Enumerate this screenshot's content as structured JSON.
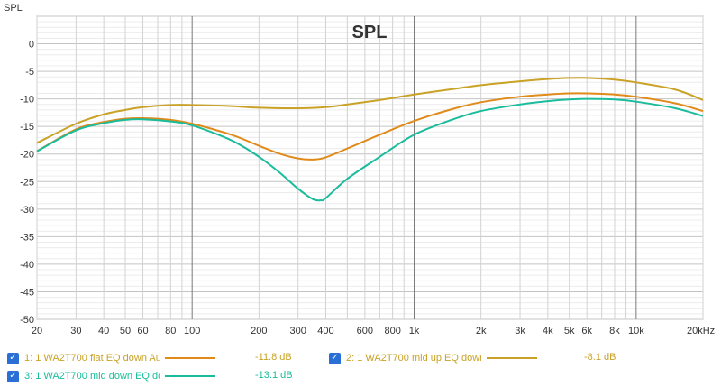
{
  "chart_data": {
    "type": "line",
    "title": "SPL",
    "ylabel": "SPL",
    "xlabel": "",
    "xscale": "log",
    "xlim": [
      20,
      20000
    ],
    "ylim": [
      -50,
      5
    ],
    "grid": true,
    "x_ticks": [
      {
        "v": 20,
        "label": "20"
      },
      {
        "v": 30,
        "label": "30"
      },
      {
        "v": 40,
        "label": "40"
      },
      {
        "v": 50,
        "label": "50"
      },
      {
        "v": 60,
        "label": "60"
      },
      {
        "v": 80,
        "label": "80"
      },
      {
        "v": 100,
        "label": "100"
      },
      {
        "v": 200,
        "label": "200"
      },
      {
        "v": 300,
        "label": "300"
      },
      {
        "v": 400,
        "label": "400"
      },
      {
        "v": 600,
        "label": "600"
      },
      {
        "v": 800,
        "label": "800"
      },
      {
        "v": 1000,
        "label": "1k"
      },
      {
        "v": 2000,
        "label": "2k"
      },
      {
        "v": 3000,
        "label": "3k"
      },
      {
        "v": 4000,
        "label": "4k"
      },
      {
        "v": 5000,
        "label": "5k"
      },
      {
        "v": 6000,
        "label": "6k"
      },
      {
        "v": 8000,
        "label": "8k"
      },
      {
        "v": 10000,
        "label": "10k"
      },
      {
        "v": 20000,
        "label": "20kHz"
      }
    ],
    "y_ticks": [
      {
        "v": 0,
        "label": "0"
      },
      {
        "v": -5,
        "label": "-5"
      },
      {
        "v": -10,
        "label": "-10"
      },
      {
        "v": -15,
        "label": "-15"
      },
      {
        "v": -20,
        "label": "-20"
      },
      {
        "v": -25,
        "label": "-25"
      },
      {
        "v": -30,
        "label": "-30"
      },
      {
        "v": -35,
        "label": "-35"
      },
      {
        "v": -40,
        "label": "-40"
      },
      {
        "v": -45,
        "label": "-45"
      },
      {
        "v": -50,
        "label": "-50"
      }
    ],
    "series": [
      {
        "name": "1: 1 WA2T700 flat EQ down Au",
        "value_label": "-11.8 dB",
        "color": "#e08a1a",
        "points": [
          [
            20,
            -19.5
          ],
          [
            30,
            -15.5
          ],
          [
            40,
            -14.2
          ],
          [
            50,
            -13.6
          ],
          [
            60,
            -13.5
          ],
          [
            80,
            -13.8
          ],
          [
            100,
            -14.5
          ],
          [
            150,
            -16.5
          ],
          [
            200,
            -18.5
          ],
          [
            250,
            -20.0
          ],
          [
            300,
            -20.8
          ],
          [
            350,
            -21.0
          ],
          [
            400,
            -20.6
          ],
          [
            500,
            -19.0
          ],
          [
            700,
            -16.5
          ],
          [
            1000,
            -14.0
          ],
          [
            1500,
            -11.8
          ],
          [
            2000,
            -10.6
          ],
          [
            3000,
            -9.6
          ],
          [
            4000,
            -9.2
          ],
          [
            5000,
            -9.0
          ],
          [
            6000,
            -9.0
          ],
          [
            8000,
            -9.2
          ],
          [
            10000,
            -9.6
          ],
          [
            15000,
            -10.8
          ],
          [
            20000,
            -12.2
          ]
        ]
      },
      {
        "name": "2: 1 WA2T700 mid up EQ dowr",
        "value_label": "-8.1 dB",
        "color": "#c9a227",
        "points": [
          [
            20,
            -18.0
          ],
          [
            30,
            -14.5
          ],
          [
            40,
            -12.8
          ],
          [
            50,
            -12.0
          ],
          [
            60,
            -11.5
          ],
          [
            80,
            -11.1
          ],
          [
            100,
            -11.1
          ],
          [
            150,
            -11.3
          ],
          [
            200,
            -11.6
          ],
          [
            300,
            -11.7
          ],
          [
            400,
            -11.5
          ],
          [
            500,
            -11.0
          ],
          [
            700,
            -10.2
          ],
          [
            1000,
            -9.2
          ],
          [
            1500,
            -8.2
          ],
          [
            2000,
            -7.5
          ],
          [
            3000,
            -6.8
          ],
          [
            4000,
            -6.4
          ],
          [
            5000,
            -6.2
          ],
          [
            6000,
            -6.2
          ],
          [
            8000,
            -6.5
          ],
          [
            10000,
            -7.0
          ],
          [
            15000,
            -8.3
          ],
          [
            20000,
            -10.2
          ]
        ]
      },
      {
        "name": "3: 1 WA2T700 mid down EQ dc",
        "value_label": "-13.1 dB",
        "color": "#1abc9c",
        "points": [
          [
            20,
            -19.5
          ],
          [
            30,
            -15.7
          ],
          [
            40,
            -14.4
          ],
          [
            50,
            -13.8
          ],
          [
            60,
            -13.7
          ],
          [
            80,
            -14.1
          ],
          [
            100,
            -14.8
          ],
          [
            150,
            -17.5
          ],
          [
            200,
            -20.5
          ],
          [
            250,
            -23.5
          ],
          [
            300,
            -26.3
          ],
          [
            350,
            -28.2
          ],
          [
            380,
            -28.4
          ],
          [
            400,
            -28.0
          ],
          [
            500,
            -24.5
          ],
          [
            700,
            -20.5
          ],
          [
            1000,
            -16.5
          ],
          [
            1500,
            -13.7
          ],
          [
            2000,
            -12.2
          ],
          [
            3000,
            -11.0
          ],
          [
            4000,
            -10.4
          ],
          [
            5000,
            -10.1
          ],
          [
            6000,
            -10.0
          ],
          [
            8000,
            -10.1
          ],
          [
            10000,
            -10.5
          ],
          [
            15000,
            -11.7
          ],
          [
            20000,
            -13.1
          ]
        ]
      }
    ]
  },
  "legend": {
    "items": [
      {
        "check": "✓",
        "name": "1: 1 WA2T700 flat EQ down Au",
        "value": "-11.8 dB",
        "color": "#e08a1a"
      },
      {
        "check": "✓",
        "name": "2: 1 WA2T700 mid up EQ dowr",
        "value": "-8.1 dB",
        "color": "#c9a227"
      },
      {
        "check": "✓",
        "name": "3: 1 WA2T700 mid down EQ dc",
        "value": "-13.1 dB",
        "color": "#1abc9c"
      }
    ]
  }
}
